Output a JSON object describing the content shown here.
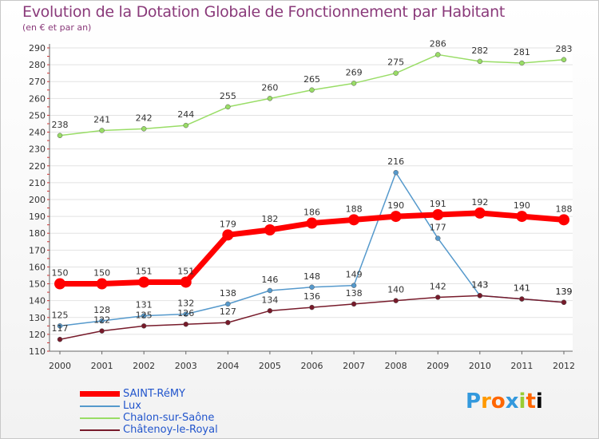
{
  "title": "Evolution de la Dotation Globale de Fonctionnement par Habitant",
  "subtitle": "(en € et par an)",
  "logo": [
    "P",
    "r",
    "o",
    "x",
    "i",
    "t",
    "i"
  ],
  "chart_data": {
    "type": "line",
    "title": "Evolution de la Dotation Globale de Fonctionnement par Habitant",
    "subtitle": "(en € et par an)",
    "x": [
      "2000",
      "2001",
      "2002",
      "2003",
      "2004",
      "2005",
      "2006",
      "2007",
      "2008",
      "2009",
      "2010",
      "2011",
      "2012"
    ],
    "ylim": [
      110,
      290
    ],
    "yticks": [
      110,
      120,
      130,
      140,
      150,
      160,
      170,
      180,
      190,
      200,
      210,
      220,
      230,
      240,
      250,
      260,
      270,
      280,
      290
    ],
    "grid": true,
    "legend_position": "bottom-left",
    "series": [
      {
        "name": "SAINT-RéMY",
        "color": "#ff0000",
        "width": 7,
        "values": [
          150,
          150,
          151,
          151,
          179,
          182,
          186,
          188,
          190,
          191,
          192,
          190,
          188
        ]
      },
      {
        "name": "Lux",
        "color": "#5599cc",
        "width": 1.5,
        "values": [
          125,
          128,
          131,
          132,
          138,
          146,
          148,
          149,
          216,
          177,
          143,
          141,
          139
        ]
      },
      {
        "name": "Chalon-sur-Saône",
        "color": "#99dd66",
        "width": 1.5,
        "values": [
          238,
          241,
          242,
          244,
          255,
          260,
          265,
          269,
          275,
          286,
          282,
          281,
          283
        ]
      },
      {
        "name": "Châtenoy-le-Royal",
        "color": "#771a2a",
        "width": 1.5,
        "values": [
          117,
          122,
          125,
          126,
          127,
          134,
          136,
          138,
          140,
          142,
          143,
          141,
          139
        ]
      }
    ]
  }
}
